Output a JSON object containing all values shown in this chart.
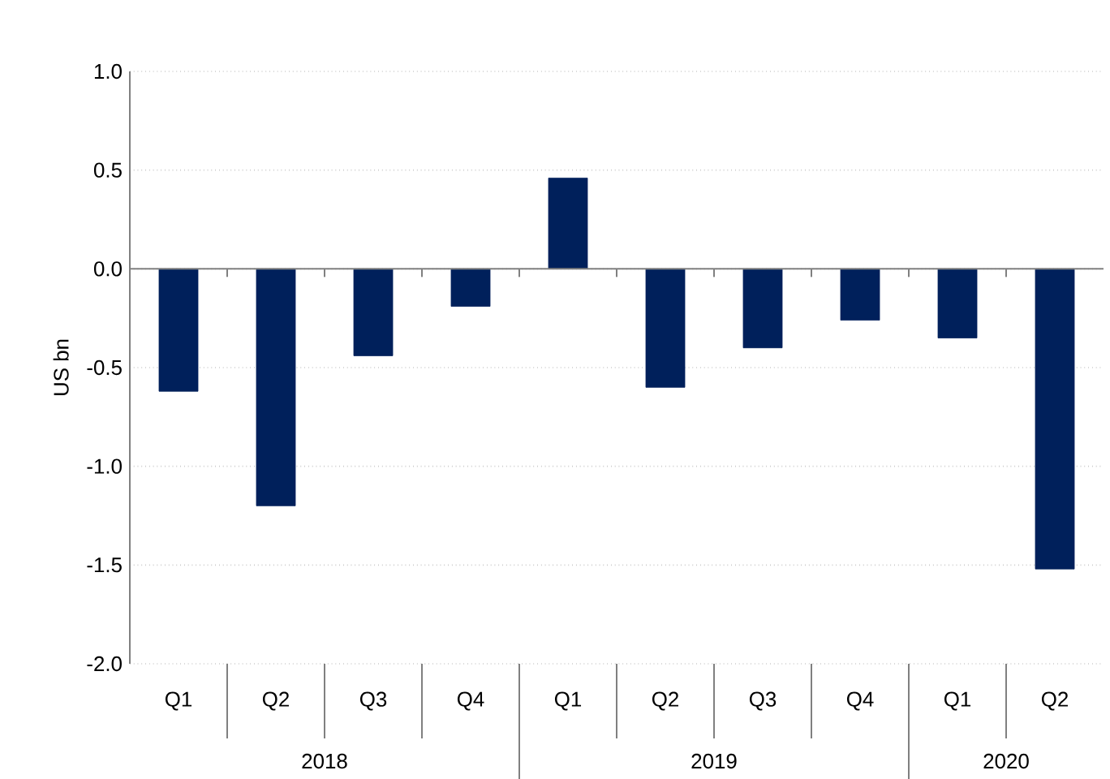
{
  "chart_data": {
    "type": "bar",
    "ylabel": "US bn",
    "categories": [
      "Q1",
      "Q2",
      "Q3",
      "Q4",
      "Q1",
      "Q2",
      "Q3",
      "Q4",
      "Q1",
      "Q2"
    ],
    "values": [
      -0.62,
      -1.2,
      -0.44,
      -0.19,
      0.46,
      -0.6,
      -0.4,
      -0.26,
      -0.35,
      -1.52
    ],
    "color": "#00205b",
    "ylim": [
      -2,
      1
    ],
    "yticks": [
      {
        "value": -2,
        "label": "-2.0"
      },
      {
        "value": -1.5,
        "label": "-1.5"
      },
      {
        "value": -1,
        "label": "-1.0"
      },
      {
        "value": -0.5,
        "label": "-0.5"
      },
      {
        "value": 0,
        "label": "0.0"
      },
      {
        "value": 0.5,
        "label": "0.5"
      },
      {
        "value": 1,
        "label": "1.0"
      }
    ],
    "grid": "y",
    "annotations": [
      "2018",
      "2019",
      "2020"
    ]
  }
}
